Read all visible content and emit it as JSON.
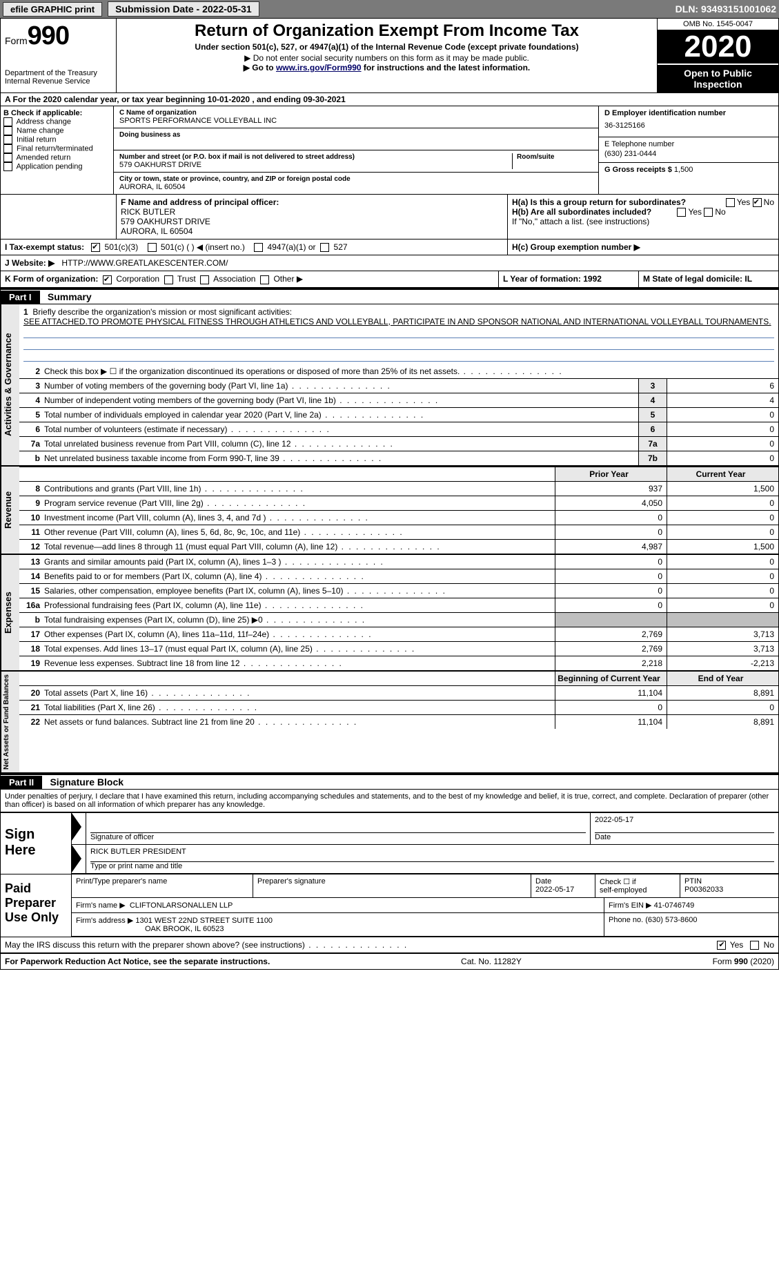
{
  "topbar": {
    "efile": "efile GRAPHIC print",
    "sub_label": "Submission Date - 2022-05-31",
    "dln": "DLN: 93493151001062"
  },
  "header": {
    "form_prefix": "Form",
    "form_num": "990",
    "dept": "Department of the Treasury\nInternal Revenue Service",
    "title": "Return of Organization Exempt From Income Tax",
    "sub1": "Under section 501(c), 527, or 4947(a)(1) of the Internal Revenue Code (except private foundations)",
    "sub2": "▶ Do not enter social security numbers on this form as it may be made public.",
    "sub3_pre": "▶ Go to ",
    "sub3_link": "www.irs.gov/Form990",
    "sub3_post": " for instructions and the latest information.",
    "omb": "OMB No. 1545-0047",
    "year": "2020",
    "inspect": "Open to Public Inspection"
  },
  "rowA": "A   For the 2020 calendar year, or tax year beginning 10-01-2020   , and ending 09-30-2021",
  "boxB": {
    "label": "B Check if applicable:",
    "items": [
      "Address change",
      "Name change",
      "Initial return",
      "Final return/terminated",
      "Amended return",
      "Application pending"
    ]
  },
  "boxC": {
    "name_label": "C Name of organization",
    "name": "SPORTS PERFORMANCE VOLLEYBALL INC",
    "dba_label": "Doing business as",
    "addr_label": "Number and street (or P.O. box if mail is not delivered to street address)",
    "room_label": "Room/suite",
    "addr": "579 OAKHURST DRIVE",
    "city_label": "City or town, state or province, country, and ZIP or foreign postal code",
    "city": "AURORA, IL  60504"
  },
  "boxD": {
    "label": "D Employer identification number",
    "val": "36-3125166"
  },
  "boxE": {
    "label": "E Telephone number",
    "val": "(630) 231-0444"
  },
  "boxG": {
    "label": "G Gross receipts $",
    "val": "1,500"
  },
  "boxF": {
    "label": "F Name and address of principal officer:",
    "name": "RICK BUTLER",
    "addr": "579 OAKHURST DRIVE",
    "city": "AURORA, IL  60504"
  },
  "boxH": {
    "ha": "H(a)  Is this a group return for subordinates?",
    "hb": "H(b)  Are all subordinates included?",
    "hb_note": "If \"No,\" attach a list. (see instructions)",
    "hc": "H(c)  Group exemption number ▶",
    "yes": "Yes",
    "no": "No"
  },
  "rowI": {
    "label": "I   Tax-exempt status:",
    "o1": "501(c)(3)",
    "o2": "501(c) (  ) ◀ (insert no.)",
    "o3": "4947(a)(1) or",
    "o4": "527"
  },
  "rowJ": {
    "label": "J   Website: ▶",
    "val": "HTTP://WWW.GREATLAKESCENTER.COM/"
  },
  "rowK": {
    "label": "K Form of organization:",
    "o1": "Corporation",
    "o2": "Trust",
    "o3": "Association",
    "o4": "Other ▶"
  },
  "rowL": "L Year of formation: 1992",
  "rowM": "M State of legal domicile: IL",
  "part1": {
    "num": "Part I",
    "title": "Summary"
  },
  "mission": {
    "l1_num": "1",
    "l1": "Briefly describe the organization's mission or most significant activities:",
    "text": "SEE ATTACHED.TO PROMOTE PHYSICAL FITNESS THROUGH ATHLETICS AND VOLLEYBALL, PARTICIPATE IN AND SPONSOR NATIONAL AND INTERNATIONAL VOLLEYBALL TOURNAMENTS."
  },
  "gov_lines": [
    {
      "n": "2",
      "t": "Check this box ▶ ☐  if the organization discontinued its operations or disposed of more than 25% of its net assets.",
      "box": "",
      "v": ""
    },
    {
      "n": "3",
      "t": "Number of voting members of the governing body (Part VI, line 1a)",
      "box": "3",
      "v": "6"
    },
    {
      "n": "4",
      "t": "Number of independent voting members of the governing body (Part VI, line 1b)",
      "box": "4",
      "v": "4"
    },
    {
      "n": "5",
      "t": "Total number of individuals employed in calendar year 2020 (Part V, line 2a)",
      "box": "5",
      "v": "0"
    },
    {
      "n": "6",
      "t": "Total number of volunteers (estimate if necessary)",
      "box": "6",
      "v": "0"
    },
    {
      "n": "7a",
      "t": "Total unrelated business revenue from Part VIII, column (C), line 12",
      "box": "7a",
      "v": "0"
    },
    {
      "n": "b",
      "t": "Net unrelated business taxable income from Form 990-T, line 39",
      "box": "7b",
      "v": "0"
    }
  ],
  "cols": {
    "prior": "Prior Year",
    "current": "Current Year"
  },
  "revenue": [
    {
      "n": "8",
      "t": "Contributions and grants (Part VIII, line 1h)",
      "p": "937",
      "c": "1,500"
    },
    {
      "n": "9",
      "t": "Program service revenue (Part VIII, line 2g)",
      "p": "4,050",
      "c": "0"
    },
    {
      "n": "10",
      "t": "Investment income (Part VIII, column (A), lines 3, 4, and 7d )",
      "p": "0",
      "c": "0"
    },
    {
      "n": "11",
      "t": "Other revenue (Part VIII, column (A), lines 5, 6d, 8c, 9c, 10c, and 11e)",
      "p": "0",
      "c": "0"
    },
    {
      "n": "12",
      "t": "Total revenue—add lines 8 through 11 (must equal Part VIII, column (A), line 12)",
      "p": "4,987",
      "c": "1,500"
    }
  ],
  "expenses": [
    {
      "n": "13",
      "t": "Grants and similar amounts paid (Part IX, column (A), lines 1–3 )",
      "p": "0",
      "c": "0"
    },
    {
      "n": "14",
      "t": "Benefits paid to or for members (Part IX, column (A), line 4)",
      "p": "0",
      "c": "0"
    },
    {
      "n": "15",
      "t": "Salaries, other compensation, employee benefits (Part IX, column (A), lines 5–10)",
      "p": "0",
      "c": "0"
    },
    {
      "n": "16a",
      "t": "Professional fundraising fees (Part IX, column (A), line 11e)",
      "p": "0",
      "c": "0"
    },
    {
      "n": "b",
      "t": "Total fundraising expenses (Part IX, column (D), line 25) ▶0",
      "p": "SHADE",
      "c": "SHADE"
    },
    {
      "n": "17",
      "t": "Other expenses (Part IX, column (A), lines 11a–11d, 11f–24e)",
      "p": "2,769",
      "c": "3,713"
    },
    {
      "n": "18",
      "t": "Total expenses. Add lines 13–17 (must equal Part IX, column (A), line 25)",
      "p": "2,769",
      "c": "3,713"
    },
    {
      "n": "19",
      "t": "Revenue less expenses. Subtract line 18 from line 12",
      "p": "2,218",
      "c": "-2,213"
    }
  ],
  "netcols": {
    "begin": "Beginning of Current Year",
    "end": "End of Year"
  },
  "netassets": [
    {
      "n": "20",
      "t": "Total assets (Part X, line 16)",
      "p": "11,104",
      "c": "8,891"
    },
    {
      "n": "21",
      "t": "Total liabilities (Part X, line 26)",
      "p": "0",
      "c": "0"
    },
    {
      "n": "22",
      "t": "Net assets or fund balances. Subtract line 21 from line 20",
      "p": "11,104",
      "c": "8,891"
    }
  ],
  "part2": {
    "num": "Part II",
    "title": "Signature Block"
  },
  "penalties": "Under penalties of perjury, I declare that I have examined this return, including accompanying schedules and statements, and to the best of my knowledge and belief, it is true, correct, and complete. Declaration of preparer (other than officer) is based on all information of which preparer has any knowledge.",
  "sign": {
    "label": "Sign Here",
    "sig_of_officer": "Signature of officer",
    "date_label": "Date",
    "date": "2022-05-17",
    "name_title": "RICK BUTLER  PRESIDENT",
    "type_label": "Type or print name and title"
  },
  "paid": {
    "label": "Paid Preparer Use Only",
    "h1": "Print/Type preparer's name",
    "h2": "Preparer's signature",
    "h3": "Date",
    "date": "2022-05-17",
    "h4_a": "Check ☐ if",
    "h4_b": "self-employed",
    "h5": "PTIN",
    "ptin": "P00362033",
    "firm_name_l": "Firm's name    ▶",
    "firm_name": "CLIFTONLARSONALLEN LLP",
    "ein_l": "Firm's EIN ▶",
    "ein": "41-0746749",
    "firm_addr_l": "Firm's address ▶",
    "firm_addr1": "1301 WEST 22ND STREET SUITE 1100",
    "firm_addr2": "OAK BROOK, IL  60523",
    "phone_l": "Phone no.",
    "phone": "(630) 573-8600"
  },
  "may_irs": "May the IRS discuss this return with the preparer shown above? (see instructions)",
  "footer": {
    "left": "For Paperwork Reduction Act Notice, see the separate instructions.",
    "mid": "Cat. No. 11282Y",
    "right": "Form 990 (2020)"
  },
  "side": {
    "gov": "Activities & Governance",
    "rev": "Revenue",
    "exp": "Expenses",
    "net": "Net Assets or Fund Balances"
  }
}
